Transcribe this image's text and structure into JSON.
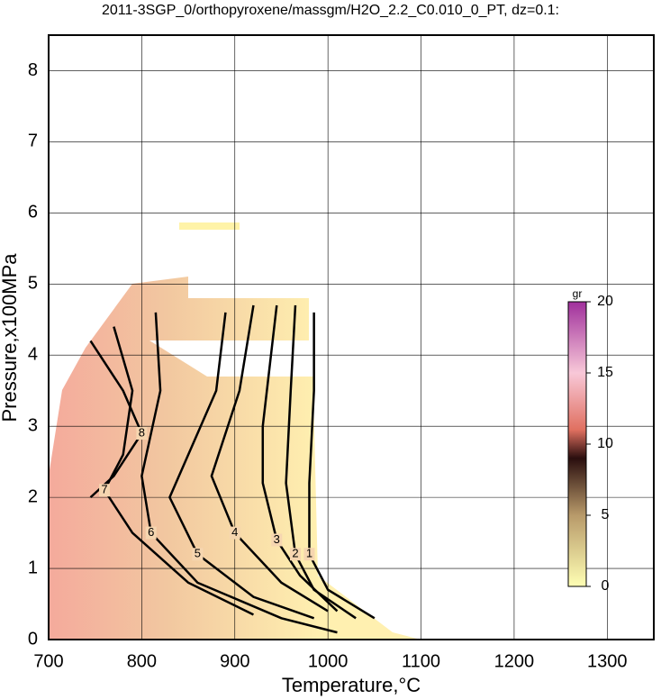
{
  "chart_data": {
    "type": "contour",
    "title": "2011-3SGP_0/orthopyroxene/massgm/H2O_2.2_C0.010_0_PT, dz=0.1:",
    "x_label": "Temperature,°C",
    "y_label": "Pressure,x100MPa",
    "xlim": [
      700,
      1350
    ],
    "ylim": [
      0,
      8.5
    ],
    "xticks": [
      700,
      800,
      900,
      1000,
      1100,
      1200,
      1300
    ],
    "yticks": [
      0,
      1,
      2,
      3,
      4,
      5,
      6,
      7,
      8
    ],
    "grid": true,
    "colorbar": {
      "label": "gr",
      "lim": [
        0,
        20
      ],
      "ticks": [
        0,
        5,
        10,
        15,
        20
      ],
      "colorscale": [
        [
          0,
          "#ffffb4"
        ],
        [
          5,
          "#b89a6a"
        ],
        [
          9,
          "#2a0e0e"
        ],
        [
          11,
          "#e07060"
        ],
        [
          15,
          "#f8c8d8"
        ],
        [
          20,
          "#a0309c"
        ]
      ]
    },
    "contours": [
      {
        "level": 8,
        "x": [
          745,
          780,
          800,
          770,
          745
        ],
        "y": [
          4.2,
          3.5,
          2.9,
          2.3,
          2.0
        ]
      },
      {
        "level": 7,
        "x": [
          770,
          790,
          780,
          760,
          790,
          850,
          920
        ],
        "y": [
          4.4,
          3.5,
          2.6,
          2.1,
          1.5,
          0.8,
          0.35
        ]
      },
      {
        "level": 6,
        "x": [
          815,
          820,
          800,
          810,
          860,
          950,
          1010
        ],
        "y": [
          4.6,
          3.5,
          2.3,
          1.5,
          0.8,
          0.3,
          0.1
        ]
      },
      {
        "level": 5,
        "x": [
          890,
          880,
          830,
          860,
          920,
          985
        ],
        "y": [
          4.6,
          3.5,
          2.0,
          1.2,
          0.6,
          0.3
        ]
      },
      {
        "level": 4,
        "x": [
          920,
          905,
          875,
          900,
          950,
          1000
        ],
        "y": [
          4.7,
          3.5,
          2.3,
          1.5,
          0.8,
          0.4
        ]
      },
      {
        "level": 3,
        "x": [
          945,
          930,
          930,
          945,
          970,
          1010
        ],
        "y": [
          4.7,
          3.0,
          2.2,
          1.4,
          0.9,
          0.4
        ]
      },
      {
        "level": 2,
        "x": [
          965,
          960,
          955,
          965,
          985,
          1030
        ],
        "y": [
          4.7,
          3.5,
          2.2,
          1.2,
          0.7,
          0.3
        ]
      },
      {
        "level": 1,
        "x": [
          985,
          985,
          980,
          980,
          1000,
          1050
        ],
        "y": [
          4.6,
          3.5,
          2.2,
          1.2,
          0.7,
          0.3
        ]
      }
    ]
  }
}
